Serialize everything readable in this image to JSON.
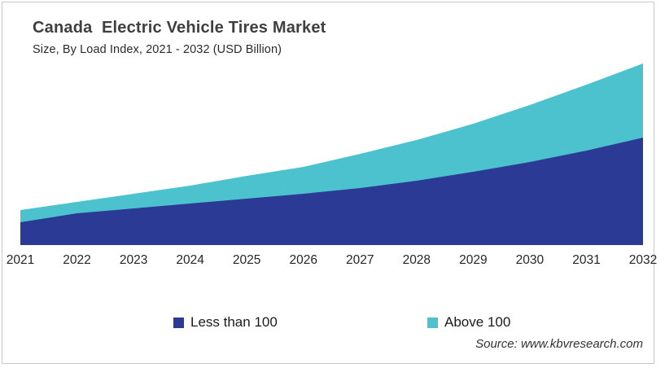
{
  "header": {
    "title": "Canada  Electric Vehicle Tires Market",
    "subtitle": "Size, By Load Index, 2021 - 2032 (USD Billion)"
  },
  "chart_data": {
    "type": "area",
    "stacked": true,
    "title": "Canada Electric Vehicle Tires Market",
    "subtitle": "Size, By Load Index, 2021 - 2032 (USD Billion)",
    "unit": "USD Billion",
    "categories": [
      "2021",
      "2022",
      "2023",
      "2024",
      "2025",
      "2026",
      "2027",
      "2028",
      "2029",
      "2030",
      "2031",
      "2032"
    ],
    "series": [
      {
        "name": "Less than 100",
        "color": "#2B3A94",
        "values": [
          0.28,
          0.39,
          0.45,
          0.51,
          0.57,
          0.63,
          0.7,
          0.79,
          0.9,
          1.02,
          1.16,
          1.32
        ]
      },
      {
        "name": "Above 100",
        "color": "#4BC2CE",
        "values": [
          0.15,
          0.14,
          0.18,
          0.22,
          0.28,
          0.33,
          0.42,
          0.5,
          0.59,
          0.7,
          0.81,
          0.91
        ]
      }
    ],
    "xlabel": "",
    "ylabel": "",
    "ylim": [
      0,
      2.31
    ],
    "y_axis_visible": false,
    "grid": false,
    "legend_position": "bottom"
  },
  "legend": {
    "items": [
      {
        "label": "Less than 100",
        "color": "#2B3A94"
      },
      {
        "label": "Above 100",
        "color": "#4BC2CE"
      }
    ]
  },
  "source": {
    "label": "Source: www.kbvresearch.com"
  },
  "frame": {
    "border_color": "#c9c9c9",
    "background": "#ffffff"
  }
}
